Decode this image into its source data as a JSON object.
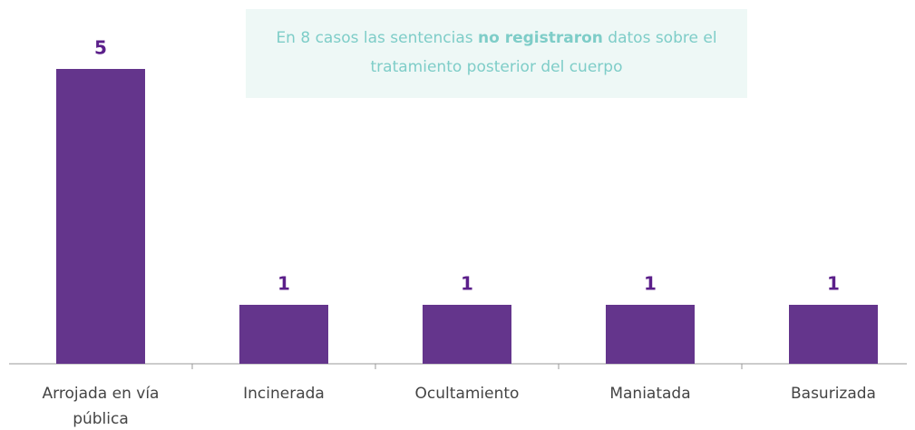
{
  "chart_data": {
    "type": "bar",
    "annotation": [
      "En 8 casos las sentencias ",
      "no registraron",
      " datos sobre el tratamiento posterior del cuerpo"
    ],
    "categories": [
      "Arrojada en vía pública",
      "Incinerada",
      "Ocultamiento",
      "Maniatada",
      "Basurizada"
    ],
    "values": [
      5,
      1,
      1,
      1,
      1
    ],
    "color": "#64358c",
    "ylim": [
      0,
      5
    ]
  }
}
